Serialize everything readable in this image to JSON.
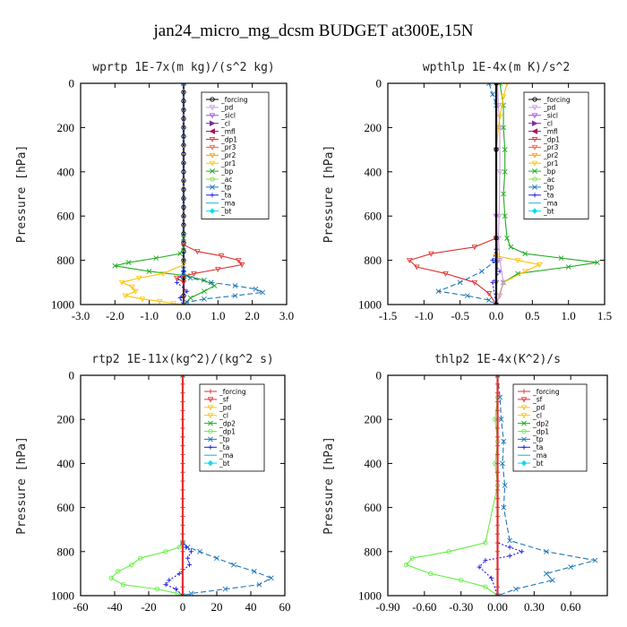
{
  "figure": {
    "title": "jan24_micro_mg_dcsm  BUDGET at300E,15N"
  },
  "chart_data": [
    {
      "type": "line",
      "title": "wprtp   1E-7x(m kg)/(s^2 kg)",
      "ylabel": "Pressure [hPa]",
      "xlim": [
        -3.0,
        3.0
      ],
      "ylim": [
        1000,
        0
      ],
      "xticks": [
        "-3.0",
        "-2.0",
        "-1.0",
        "0.0",
        "1.0",
        "2.0",
        "3.0"
      ],
      "yticks": [
        "0",
        "200",
        "400",
        "600",
        "800",
        "1000"
      ],
      "legend": [
        "_forcing",
        "_pd",
        "_sicl",
        "_cl",
        "_mfl",
        "_dp1",
        "_pr3",
        "_pr2",
        "_pr1",
        "_bp",
        "_ac",
        "_tp",
        "_ta",
        "_ma",
        "_bt"
      ],
      "series": [
        {
          "name": "_forcing",
          "color": "#000000",
          "marker": "circle",
          "dash": "",
          "x": [
            0,
            0,
            0,
            0,
            0,
            0,
            0,
            0,
            0,
            0,
            0,
            0,
            0,
            0,
            0,
            0,
            0,
            0,
            0,
            0,
            0,
            0,
            0,
            0
          ],
          "y": [
            0,
            40,
            80,
            120,
            160,
            200,
            240,
            280,
            320,
            360,
            400,
            440,
            480,
            520,
            560,
            600,
            640,
            680,
            720,
            760,
            800,
            880,
            960,
            1000
          ]
        },
        {
          "name": "_bp",
          "color": "#22aa22",
          "marker": "x",
          "dash": "",
          "x": [
            0,
            0,
            0,
            -0.1,
            -0.8,
            -1.6,
            -2.0,
            -1.0,
            0.1,
            0.6,
            0.9,
            0.6,
            0.2,
            0
          ],
          "y": [
            0,
            700,
            740,
            770,
            790,
            810,
            825,
            850,
            870,
            890,
            915,
            940,
            970,
            1000
          ]
        },
        {
          "name": "_dp1",
          "color": "#e03030",
          "marker": "triangle-down",
          "dash": "",
          "x": [
            0,
            0,
            0.4,
            1.1,
            1.6,
            1.7,
            1.0,
            0.3,
            -0.2,
            0,
            0
          ],
          "y": [
            0,
            730,
            760,
            780,
            800,
            820,
            840,
            860,
            880,
            900,
            1000
          ]
        },
        {
          "name": "_pr1",
          "color": "#ffc200",
          "marker": "triangle-down",
          "dash": "",
          "x": [
            0,
            0,
            -0.6,
            -1.3,
            -1.8,
            -1.5,
            -1.4,
            -1.7,
            -1.2,
            -0.7,
            -0.3,
            0
          ],
          "y": [
            0,
            820,
            860,
            880,
            900,
            920,
            940,
            960,
            975,
            985,
            995,
            1000
          ]
        },
        {
          "name": "_tp",
          "color": "#1f77b4",
          "marker": "x",
          "dash": "6 3",
          "x": [
            0,
            0,
            0,
            0.2,
            0.8,
            1.5,
            2.1,
            2.3,
            1.5,
            0.6,
            0.1,
            0
          ],
          "y": [
            0,
            840,
            860,
            880,
            900,
            915,
            930,
            945,
            960,
            975,
            990,
            1000
          ]
        },
        {
          "name": "_ta",
          "color": "#1a1aee",
          "marker": "plus",
          "dash": "2 2",
          "x": [
            0,
            0,
            -0.2,
            0.1,
            -0.1,
            0
          ],
          "y": [
            0,
            850,
            900,
            940,
            970,
            1000
          ]
        }
      ]
    },
    {
      "type": "line",
      "title": "wpthlp   1E-4x(m K)/s^2",
      "ylabel": "Pressure [hPa]",
      "xlim": [
        -1.5,
        1.5
      ],
      "ylim": [
        1000,
        0
      ],
      "xticks": [
        "-1.5",
        "-1.0",
        "-0.5",
        "0.0",
        "0.5",
        "1.0",
        "1.5"
      ],
      "yticks": [
        "0",
        "200",
        "400",
        "600",
        "800",
        "1000"
      ],
      "legend": [
        "_forcing",
        "_pd",
        "_sicl",
        "_cl",
        "_mfl",
        "_dp1",
        "_pr3",
        "_pr2",
        "_pr1",
        "_bp",
        "_ac",
        "_tp",
        "_ta",
        "_ma",
        "_bt"
      ],
      "series": [
        {
          "name": "_bp",
          "color": "#22aa22",
          "marker": "x",
          "dash": "",
          "x": [
            0.05,
            0.1,
            0.1,
            0.12,
            0.12,
            0.1,
            0.12,
            0.15,
            0.2,
            0.4,
            0.9,
            1.4,
            1.0,
            0.3,
            0.1,
            0.0
          ],
          "y": [
            0,
            100,
            200,
            300,
            400,
            500,
            600,
            700,
            740,
            770,
            790,
            810,
            830,
            860,
            900,
            1000
          ]
        },
        {
          "name": "_pr1",
          "color": "#ffc200",
          "marker": "triangle-down",
          "dash": "",
          "x": [
            0.15,
            0.1,
            0.08,
            0.05,
            0.03,
            0,
            0,
            0.3,
            0.6,
            0.4,
            0.1,
            0
          ],
          "y": [
            0,
            60,
            100,
            150,
            200,
            300,
            780,
            800,
            820,
            850,
            900,
            1000
          ]
        },
        {
          "name": "_dp1",
          "color": "#e03030",
          "marker": "triangle-down",
          "dash": "",
          "x": [
            0,
            0,
            -0.3,
            -0.9,
            -1.2,
            -1.1,
            -0.7,
            -0.3,
            -0.1,
            0
          ],
          "y": [
            0,
            700,
            740,
            770,
            800,
            830,
            860,
            900,
            950,
            1000
          ]
        },
        {
          "name": "_tp",
          "color": "#1f77b4",
          "marker": "x",
          "dash": "6 3",
          "x": [
            -0.1,
            -0.05,
            0,
            0,
            -0.2,
            -0.5,
            -0.8,
            -0.4,
            -0.1,
            0
          ],
          "y": [
            0,
            50,
            100,
            800,
            850,
            900,
            940,
            960,
            980,
            1000
          ]
        },
        {
          "name": "_ta",
          "color": "#1a1aee",
          "marker": "plus",
          "dash": "2 2",
          "x": [
            0,
            0,
            -0.05,
            0.05,
            -0.05,
            0
          ],
          "y": [
            0,
            750,
            800,
            850,
            900,
            1000
          ]
        },
        {
          "name": "_sicl",
          "color": "#9a4fd8",
          "marker": "triangle-down",
          "dash": "",
          "x": [
            0,
            0,
            0,
            0.02,
            0,
            0
          ],
          "y": [
            0,
            300,
            600,
            800,
            900,
            1000
          ]
        },
        {
          "name": "_pd",
          "color": "#cc99dd",
          "marker": "triangle-down",
          "dash": "",
          "x": [
            0.02,
            0.03,
            0.05,
            0.05,
            0.04,
            0.03,
            0.05,
            0.1,
            0.05,
            0
          ],
          "y": [
            0,
            100,
            200,
            400,
            600,
            700,
            800,
            900,
            960,
            1000
          ]
        },
        {
          "name": "_forcing",
          "color": "#000000",
          "marker": "circle",
          "dash": "",
          "x": [
            0,
            0,
            0,
            0
          ],
          "y": [
            0,
            300,
            700,
            1000
          ]
        }
      ]
    },
    {
      "type": "line",
      "title": "rtp2   1E-11x(kg^2)/(kg^2 s)",
      "ylabel": "Pressure [hPa]",
      "xlim": [
        -60,
        60
      ],
      "ylim": [
        1000,
        0
      ],
      "xticks": [
        "-60",
        "-40",
        "-20",
        "0",
        "20",
        "40",
        "60"
      ],
      "yticks": [
        "0",
        "200",
        "400",
        "600",
        "800",
        "1000"
      ],
      "legend": [
        "_forcing",
        "_sf",
        "_pd",
        "_cl",
        "_dp2",
        "_dp1",
        "_tp",
        "_ta",
        "_ma",
        "_bt"
      ],
      "series": [
        {
          "name": "_dp1",
          "color": "#66ee44",
          "marker": "circle",
          "dash": "",
          "x": [
            0,
            0,
            -2,
            -10,
            -25,
            -30,
            -38,
            -42,
            -35,
            -15,
            -3,
            0
          ],
          "y": [
            0,
            760,
            780,
            800,
            830,
            860,
            890,
            920,
            950,
            970,
            990,
            1000
          ]
        },
        {
          "name": "_tp",
          "color": "#1f77b4",
          "marker": "x",
          "dash": "6 3",
          "x": [
            0,
            0,
            3,
            10,
            20,
            30,
            42,
            52,
            45,
            25,
            5,
            0
          ],
          "y": [
            0,
            760,
            780,
            800,
            830,
            860,
            890,
            920,
            950,
            970,
            990,
            1000
          ]
        },
        {
          "name": "_ta",
          "color": "#1a1aee",
          "marker": "plus",
          "dash": "2 2",
          "x": [
            0,
            0,
            2,
            5,
            3,
            4,
            -2,
            -8,
            -10,
            -4,
            0
          ],
          "y": [
            0,
            760,
            780,
            800,
            830,
            860,
            900,
            930,
            950,
            970,
            1000
          ]
        },
        {
          "name": "_forcing",
          "color": "#e03030",
          "marker": "plus",
          "dash": "",
          "x": [
            0,
            0,
            0,
            0,
            0,
            0,
            0,
            0,
            0,
            0,
            0,
            0,
            0,
            0,
            0,
            0,
            0,
            0,
            0,
            0,
            0,
            0,
            0,
            0
          ],
          "y": [
            0,
            40,
            80,
            120,
            160,
            200,
            240,
            280,
            320,
            360,
            400,
            440,
            480,
            520,
            560,
            600,
            640,
            680,
            720,
            760,
            800,
            880,
            960,
            1000
          ]
        }
      ]
    },
    {
      "type": "line",
      "title": "thlp2   1E-4x(K^2)/s",
      "ylabel": "Pressure [hPa]",
      "xlim": [
        -0.9,
        0.9
      ],
      "ylim": [
        1000,
        0
      ],
      "xticks": [
        "-0.90",
        "-0.60",
        "-0.30",
        "0.00",
        "0.30",
        "0.60"
      ],
      "xtick_values": [
        -0.9,
        -0.6,
        -0.3,
        0.0,
        0.3,
        0.6
      ],
      "yticks": [
        "0",
        "200",
        "400",
        "600",
        "800",
        "1000"
      ],
      "legend": [
        "_forcing",
        "_sf",
        "_pd",
        "_cl",
        "_dp2",
        "_dp1",
        "_tp",
        "_ta",
        "_ma",
        "_bt"
      ],
      "series": [
        {
          "name": "_dp1",
          "color": "#66ee44",
          "marker": "circle",
          "dash": "",
          "x": [
            0,
            0,
            -0.02,
            0,
            -0.02,
            0,
            -0.1,
            -0.4,
            -0.7,
            -0.75,
            -0.55,
            -0.3,
            -0.1,
            0
          ],
          "y": [
            0,
            100,
            200,
            300,
            400,
            500,
            760,
            800,
            830,
            860,
            900,
            930,
            960,
            1000
          ]
        },
        {
          "name": "_tp",
          "color": "#1f77b4",
          "marker": "x",
          "dash": "6 3",
          "x": [
            0,
            0.02,
            0.03,
            0.05,
            0.04,
            0.06,
            0.05,
            0.1,
            0.4,
            0.8,
            0.6,
            0.4,
            0.45,
            0.15,
            0
          ],
          "y": [
            0,
            100,
            200,
            300,
            400,
            500,
            600,
            750,
            800,
            840,
            870,
            900,
            930,
            970,
            1000
          ]
        },
        {
          "name": "_ta",
          "color": "#1a1aee",
          "marker": "plus",
          "dash": "2 2",
          "x": [
            0,
            0,
            0.1,
            0.2,
            0.1,
            -0.1,
            -0.15,
            -0.05,
            0
          ],
          "y": [
            0,
            760,
            780,
            800,
            820,
            840,
            870,
            920,
            1000
          ]
        },
        {
          "name": "_forcing",
          "color": "#e03030",
          "marker": "plus",
          "dash": "",
          "x": [
            0,
            0,
            0,
            0,
            0,
            0,
            0,
            0,
            0,
            0,
            0,
            0,
            0,
            0,
            0,
            0,
            0,
            0,
            0,
            0,
            0,
            0,
            0,
            0
          ],
          "y": [
            0,
            40,
            80,
            120,
            160,
            200,
            240,
            280,
            320,
            360,
            400,
            440,
            480,
            520,
            560,
            600,
            640,
            680,
            720,
            760,
            800,
            880,
            960,
            1000
          ]
        }
      ]
    }
  ],
  "legend_styles": {
    "_forcing": {
      "color": "#000000",
      "marker": "circle"
    },
    "_pd": {
      "color": "#cc99dd",
      "marker": "triangle-down"
    },
    "_sicl": {
      "color": "#9a4fd8",
      "marker": "triangle-down"
    },
    "_cl": {
      "color": "#7a2a9a",
      "marker": "triangle-right"
    },
    "_mfl": {
      "color": "#aa1166",
      "marker": "triangle-left"
    },
    "_dp1": {
      "color": "#e03030",
      "marker": "triangle-down"
    },
    "_pr3": {
      "color": "#ff5544",
      "marker": "triangle-down"
    },
    "_pr2": {
      "color": "#ff9900",
      "marker": "triangle-down"
    },
    "_pr1": {
      "color": "#ffc200",
      "marker": "triangle-down"
    },
    "_bp": {
      "color": "#22aa22",
      "marker": "x"
    },
    "_ac": {
      "color": "#88dd44",
      "marker": "circle"
    },
    "_tp": {
      "color": "#1f77b4",
      "marker": "x"
    },
    "_ta": {
      "color": "#1a1aee",
      "marker": "plus"
    },
    "_ma": {
      "color": "#22aadd",
      "marker": "none"
    },
    "_bt": {
      "color": "#00ddee",
      "marker": "diamond"
    },
    "_sf": {
      "color": "#e03030",
      "marker": "triangle-down"
    },
    "_dp2": {
      "color": "#22aa22",
      "marker": "x"
    }
  },
  "legend_styles_bottom": {
    "_forcing": {
      "color": "#e03030",
      "marker": "plus"
    },
    "_sf": {
      "color": "#e03030",
      "marker": "triangle-down"
    },
    "_pd": {
      "color": "#ffc200",
      "marker": "triangle-down"
    },
    "_cl": {
      "color": "#ffc200",
      "marker": "triangle-down"
    },
    "_dp2": {
      "color": "#22aa22",
      "marker": "x"
    },
    "_dp1": {
      "color": "#66ee44",
      "marker": "circle"
    },
    "_tp": {
      "color": "#1f77b4",
      "marker": "x"
    },
    "_ta": {
      "color": "#1a1aee",
      "marker": "plus"
    },
    "_ma": {
      "color": "#22aadd",
      "marker": "none"
    },
    "_bt": {
      "color": "#00ddee",
      "marker": "diamond"
    }
  }
}
